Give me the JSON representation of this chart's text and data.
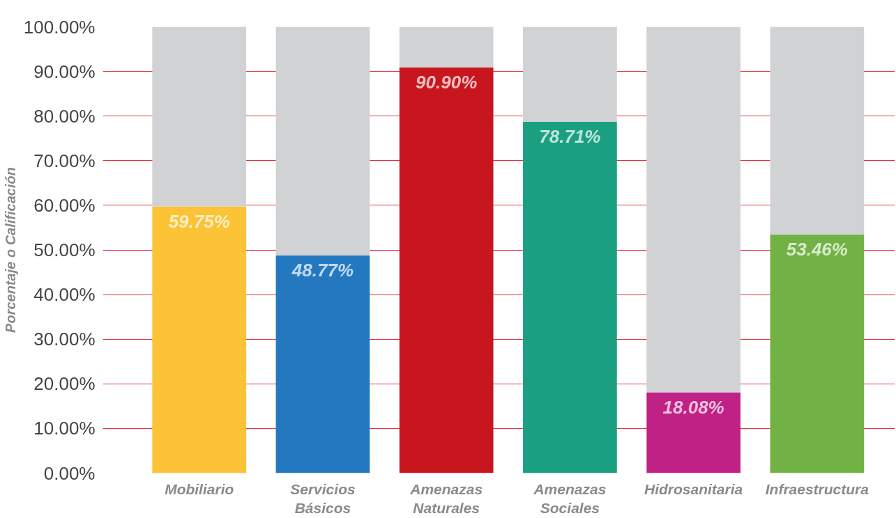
{
  "chart_data": {
    "type": "bar",
    "ylabel": "Porcentaje o Calificación",
    "categories": [
      "Mobiliario",
      "Servicios Básicos",
      "Amenazas Naturales",
      "Amenazas Sociales",
      "Hidrosanitaria",
      "Infraestructura"
    ],
    "stacked": true,
    "series": [
      {
        "colors": [
          "#fbc335",
          "#2378c0",
          "#c8161f",
          "#1aa081",
          "#c02185",
          "#72b244"
        ],
        "values": [
          59.75,
          48.77,
          90.9,
          78.71,
          18.08,
          53.46
        ],
        "value_labels": [
          "59.75%",
          "48.77%",
          "90.90%",
          "78.71%",
          "18.08%",
          "53.46%"
        ]
      },
      {
        "color": "#d1d2d4",
        "values": [
          40.25,
          51.23,
          9.1,
          21.29,
          81.92,
          46.54
        ]
      }
    ],
    "ylim": [
      0,
      100
    ],
    "yticks": [
      {
        "value": 0,
        "label": "0.00%"
      },
      {
        "value": 10,
        "label": "10.00%"
      },
      {
        "value": 20,
        "label": "20.00%"
      },
      {
        "value": 30,
        "label": "30.00%"
      },
      {
        "value": 40,
        "label": "40.00%"
      },
      {
        "value": 50,
        "label": "50.00%"
      },
      {
        "value": 60,
        "label": "60.00%"
      },
      {
        "value": 70,
        "label": "70.00%"
      },
      {
        "value": 80,
        "label": "80.00%"
      },
      {
        "value": 90,
        "label": "90.00%"
      },
      {
        "value": 100,
        "label": "100.00%"
      }
    ],
    "grid": "y"
  }
}
